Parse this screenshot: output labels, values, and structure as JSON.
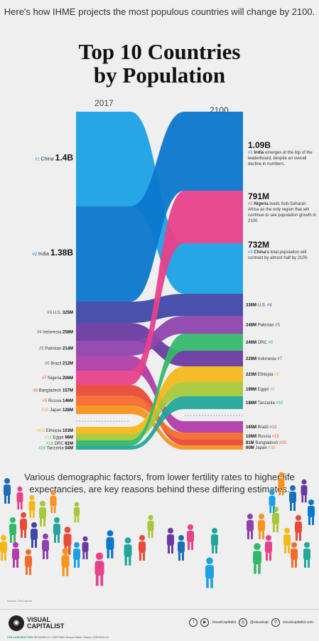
{
  "header": {
    "intro": "Here's how IHME projects the most populous countries will change by 2100.",
    "title_line1": "Top 10 Countries",
    "title_line2": "by Population"
  },
  "chart_data": {
    "type": "sankey",
    "years": [
      "2017",
      "2100"
    ],
    "left": [
      {
        "rank": "#1",
        "country": "China",
        "value": "1.4B",
        "color": "#1aa1e6"
      },
      {
        "rank": "#2",
        "country": "India",
        "value": "1.38B",
        "color": "#0b77cc"
      },
      {
        "rank": "#3",
        "country": "U.S.",
        "value": "325M",
        "color": "#3f48a8"
      },
      {
        "rank": "#4",
        "country": "Indonesia",
        "value": "258M",
        "color": "#6a3aa0"
      },
      {
        "rank": "#5",
        "country": "Pakistan",
        "value": "214M",
        "color": "#8e44ad"
      },
      {
        "rank": "#6",
        "country": "Brazil",
        "value": "212M",
        "color": "#b03da8"
      },
      {
        "rank": "#7",
        "country": "Nigeria",
        "value": "206M",
        "color": "#e8418a"
      },
      {
        "rank": "#8",
        "country": "Bangladesh",
        "value": "157M",
        "color": "#e84a3a"
      },
      {
        "rank": "#9",
        "country": "Russia",
        "value": "146M",
        "color": "#f46a2e"
      },
      {
        "rank": "#10",
        "country": "Japan",
        "value": "128M",
        "color": "#f7931e"
      },
      {
        "rank": "#13",
        "country": "Ethiopia",
        "value": "103M",
        "color": "#f5b81b"
      },
      {
        "rank": "#14",
        "country": "Egypt",
        "value": "96M",
        "color": "#a7c83a"
      },
      {
        "rank": "#18",
        "country": "DRC",
        "value": "81M",
        "color": "#35b86b"
      },
      {
        "rank": "#24",
        "country": "Tanzania",
        "value": "54M",
        "color": "#22a79a"
      }
    ],
    "right": [
      {
        "country": "India",
        "value": "1.09B",
        "rank": "#1"
      },
      {
        "country": "Nigeria",
        "value": "791M",
        "rank": "#2"
      },
      {
        "country": "China",
        "value": "732M",
        "rank": "#3"
      },
      {
        "country": "U.S.",
        "value": "336M",
        "rank": "#4"
      },
      {
        "country": "Pakistan",
        "value": "248M",
        "rank": "#5"
      },
      {
        "country": "DRC",
        "value": "246M",
        "rank": "#6"
      },
      {
        "country": "Indonesia",
        "value": "229M",
        "rank": "#7"
      },
      {
        "country": "Ethiopia",
        "value": "223M",
        "rank": "#8"
      },
      {
        "country": "Egypt",
        "value": "199M",
        "rank": "#9"
      },
      {
        "country": "Tanzania",
        "value": "186M",
        "rank": "#10"
      },
      {
        "country": "Brazil",
        "value": "165M",
        "rank": "#13"
      },
      {
        "country": "Russia",
        "value": "106M",
        "rank": "#19"
      },
      {
        "country": "Bangladesh",
        "value": "81M",
        "rank": "#25"
      },
      {
        "country": "Japan",
        "value": "60M",
        "rank": "#38"
      }
    ]
  },
  "descriptions": {
    "india": {
      "value": "1.09B",
      "rank": "#1",
      "name": "India",
      "text": "emerges at the top of the leaderboard, despite an overall decline in numbers."
    },
    "nigeria": {
      "value": "791M",
      "rank": "#2",
      "name": "Nigeria",
      "text": "leads Sub-Saharan Africa as the only region that will continue to see population growth in 2100."
    },
    "china": {
      "value": "732M",
      "rank": "#3",
      "name": "China's",
      "text": "total population will contract by almost half by 2100."
    }
  },
  "bottom_text": "Various demographic factors, from lower fertility rates to higher life expectancies, are key reasons behind these differing estimates.",
  "source": "Source: The Lancet",
  "footer": {
    "brand_line1": "VISUAL",
    "brand_line2": "CAPITALIST",
    "social": [
      "/visualcapitalist",
      "@visualcap",
      "visualcapitalist.com"
    ],
    "credits_label": "COLLABORATORS",
    "credits": "RESEARCH + WRITING Anupa Brinto Ghosh  |  DESIGN VC"
  }
}
